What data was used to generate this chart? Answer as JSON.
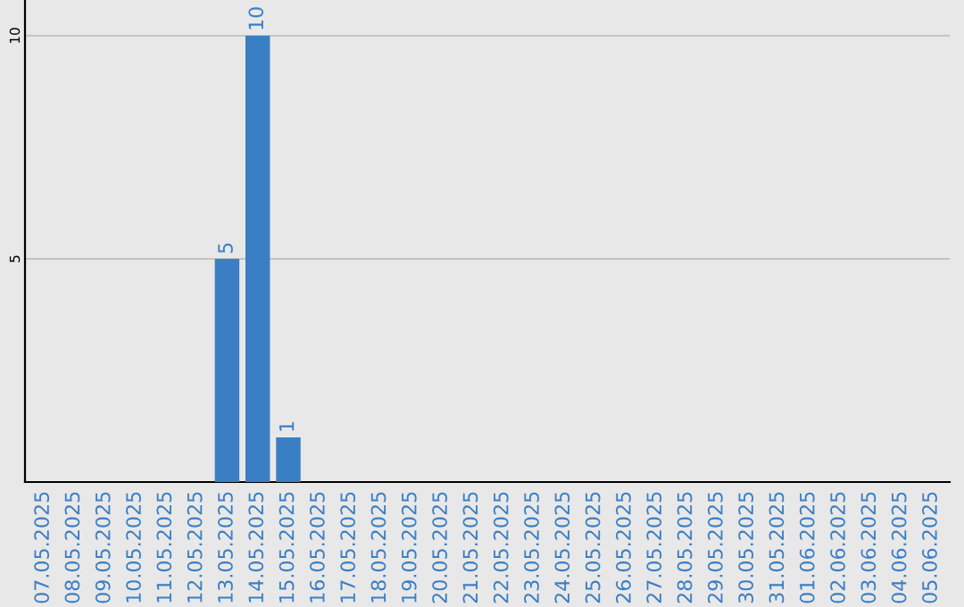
{
  "chart_data": {
    "type": "bar",
    "categories": [
      "07.05.2025",
      "08.05.2025",
      "09.05.2025",
      "10.05.2025",
      "11.05.2025",
      "12.05.2025",
      "13.05.2025",
      "14.05.2025",
      "15.05.2025",
      "16.05.2025",
      "17.05.2025",
      "18.05.2025",
      "19.05.2025",
      "20.05.2025",
      "21.05.2025",
      "22.05.2025",
      "23.05.2025",
      "24.05.2025",
      "25.05.2025",
      "26.05.2025",
      "27.05.2025",
      "28.05.2025",
      "29.05.2025",
      "30.05.2025",
      "31.05.2025",
      "01.06.2025",
      "02.06.2025",
      "03.06.2025",
      "04.06.2025",
      "05.06.2025"
    ],
    "values": [
      null,
      null,
      null,
      null,
      null,
      null,
      5,
      10,
      1,
      null,
      null,
      null,
      null,
      null,
      null,
      null,
      null,
      null,
      null,
      null,
      null,
      null,
      null,
      null,
      null,
      null,
      null,
      null,
      null,
      null
    ],
    "color": "#3a7ec4",
    "ylim": [
      0,
      10.8
    ],
    "yticks": [
      5,
      10
    ],
    "grid": "y",
    "data_labels": true
  }
}
